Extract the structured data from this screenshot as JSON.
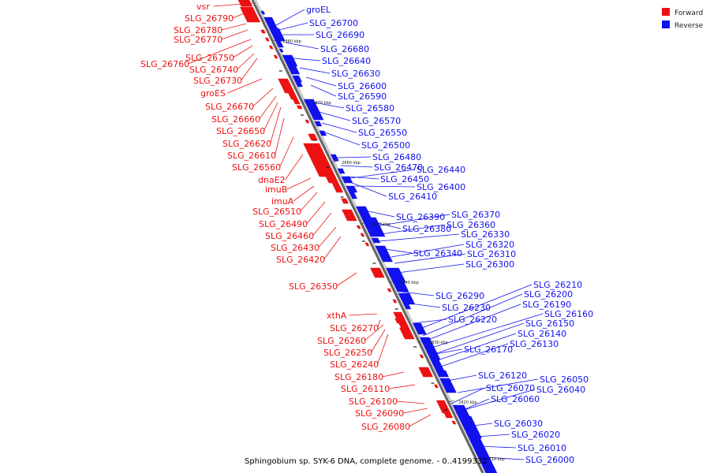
{
  "legend": {
    "forward": {
      "label": "Forward",
      "color": "#ee1111"
    },
    "reverse": {
      "label": "Reverse",
      "color": "#1111ee"
    }
  },
  "caption": "Sphingobium sp. SYK-6 DNA, complete genome. - 0..4199332",
  "ticks": [
    "2880 kbp",
    "2870 kbp",
    "2860 kbp",
    "2850 kbp",
    "2840 kbp",
    "2830 kbp",
    "2820 kbp",
    "2810 kbp"
  ],
  "forward_genes": [
    "vsr",
    "SLG_26790",
    "SLG_26780",
    "SLG_26770",
    "SLG_26760",
    "SLG_26750",
    "SLG_26740",
    "SLG_26730",
    "groES",
    "SLG_26670",
    "SLG_26660",
    "SLG_26650",
    "SLG_26620",
    "SLG_26610",
    "SLG_26560",
    "dnaE2",
    "imuB",
    "imuA",
    "SLG_26510",
    "SLG_26490",
    "SLG_26460",
    "SLG_26430",
    "SLG_26420",
    "SLG_26350",
    "xthA",
    "SLG_26270",
    "SLG_26260",
    "SLG_26250",
    "SLG_26240",
    "SLG_26180",
    "SLG_26110",
    "SLG_26100",
    "SLG_26090",
    "SLG_26080"
  ],
  "reverse_genes": [
    "groEL",
    "SLG_26700",
    "SLG_26690",
    "SLG_26680",
    "SLG_26640",
    "SLG_26630",
    "SLG_26600",
    "SLG_26590",
    "SLG_26580",
    "SLG_26570",
    "SLG_26550",
    "SLG_26500",
    "SLG_26480",
    "SLG_26470",
    "SLG_26440",
    "SLG_26450",
    "SLG_26400",
    "SLG_26410",
    "SLG_26390",
    "SLG_26370",
    "SLG_26380",
    "SLG_26360",
    "SLG_26330",
    "SLG_26340",
    "SLG_26320",
    "SLG_26310",
    "SLG_26300",
    "SLG_26290",
    "SLG_26230",
    "SLG_26220",
    "SLG_26210",
    "SLG_26200",
    "SLG_26190",
    "SLG_26160",
    "SLG_26150",
    "SLG_26140",
    "SLG_26130",
    "SLG_26170",
    "SLG_26120",
    "SLG_26050",
    "SLG_26070",
    "SLG_26040",
    "SLG_26060",
    "SLG_26030",
    "SLG_26020",
    "SLG_26010",
    "SLG_26000"
  ]
}
